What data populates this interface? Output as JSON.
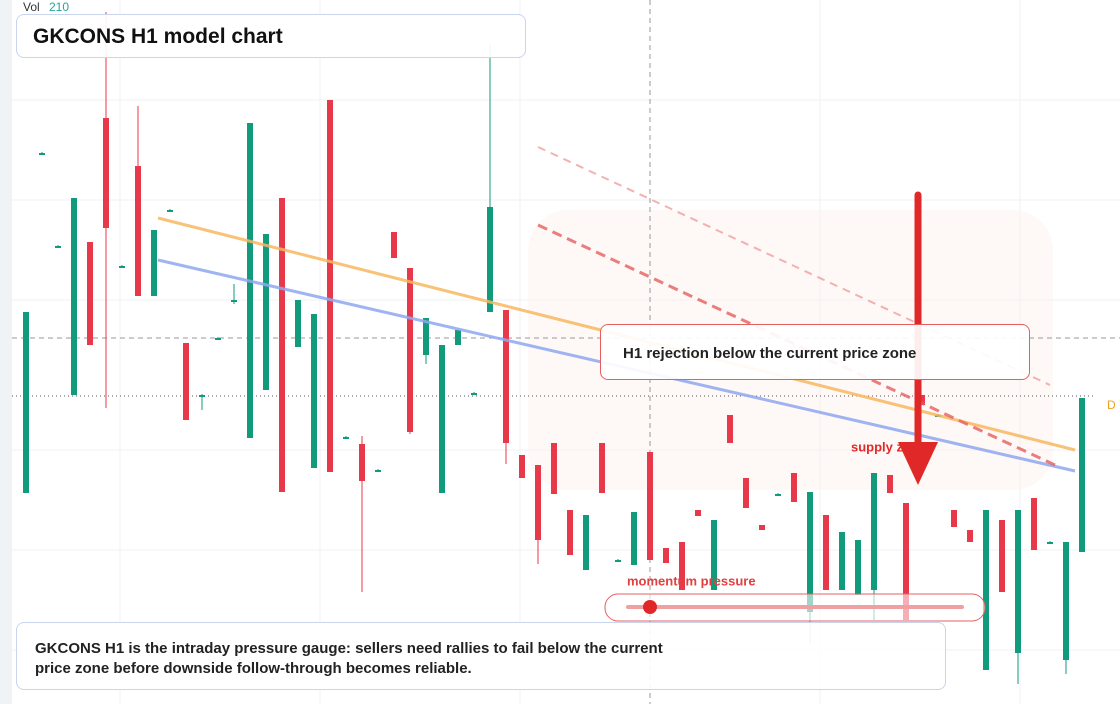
{
  "chart_data": {
    "type": "candlestick",
    "title": "GKCONS H1 model chart",
    "volume_label": "Vol",
    "volume_value": 210,
    "annotation": "H1 rejection below the current price zone",
    "zone_label": "supply zone",
    "gauge_label": "momentum pressure",
    "description": "GKCONS H1 is the intraday pressure gauge: sellers need rallies to fail below the current price zone before downside follow-through becomes reliable.",
    "price_tag": "D",
    "up_color": "#129a7c",
    "down_color": "#e8394a",
    "ylim": [
      0,
      704
    ],
    "open": [
      211,
      550,
      458,
      309,
      462,
      586,
      438,
      538,
      408,
      494,
      361,
      309,
      366,
      404,
      266,
      314,
      506,
      357,
      236,
      604,
      267,
      260,
      234,
      472,
      436,
      349,
      211,
      359,
      311,
      392,
      394,
      249,
      239,
      261,
      194,
      134,
      261,
      144,
      139,
      252,
      156,
      162,
      194,
      114,
      289,
      226,
      179,
      210,
      231,
      92,
      189,
      114,
      109,
      114,
      229,
      201,
      309,
      289,
      194,
      174,
      34,
      184,
      51,
      206,
      162,
      44,
      152
    ],
    "high": [
      392,
      552,
      459,
      506,
      462,
      692,
      439,
      598,
      474,
      495,
      361,
      310,
      367,
      420,
      581,
      470,
      506,
      404,
      390,
      604,
      268,
      268,
      235,
      472,
      436,
      386,
      359,
      374,
      312,
      659,
      394,
      249,
      239,
      261,
      194,
      189,
      261,
      145,
      192,
      252,
      156,
      162,
      194,
      184,
      289,
      226,
      179,
      211,
      231,
      212,
      189,
      172,
      164,
      231,
      229,
      201,
      309,
      290,
      194,
      174,
      194,
      184,
      194,
      206,
      163,
      162,
      306
    ],
    "low": [
      211,
      549,
      457,
      309,
      359,
      296,
      437,
      408,
      408,
      493,
      284,
      294,
      365,
      400,
      266,
      314,
      212,
      357,
      236,
      232,
      266,
      112,
      233,
      446,
      270,
      340,
      211,
      359,
      310,
      392,
      240,
      226,
      140,
      210,
      149,
      134,
      211,
      143,
      139,
      144,
      141,
      114,
      188,
      114,
      261,
      196,
      174,
      209,
      202,
      60,
      114,
      114,
      109,
      84,
      211,
      84,
      299,
      288,
      177,
      162,
      34,
      112,
      20,
      154,
      161,
      30,
      152
    ],
    "close": [
      392,
      551,
      458,
      506,
      359,
      476,
      438,
      408,
      474,
      494,
      284,
      309,
      366,
      404,
      581,
      470,
      212,
      404,
      390,
      232,
      267,
      223,
      234,
      446,
      272,
      386,
      359,
      374,
      311,
      497,
      261,
      226,
      164,
      210,
      149,
      189,
      211,
      144,
      192,
      144,
      141,
      114,
      188,
      184,
      261,
      196,
      174,
      210,
      202,
      212,
      114,
      172,
      164,
      231,
      211,
      84,
      299,
      289,
      177,
      162,
      194,
      112,
      194,
      154,
      162,
      162,
      306
    ]
  }
}
